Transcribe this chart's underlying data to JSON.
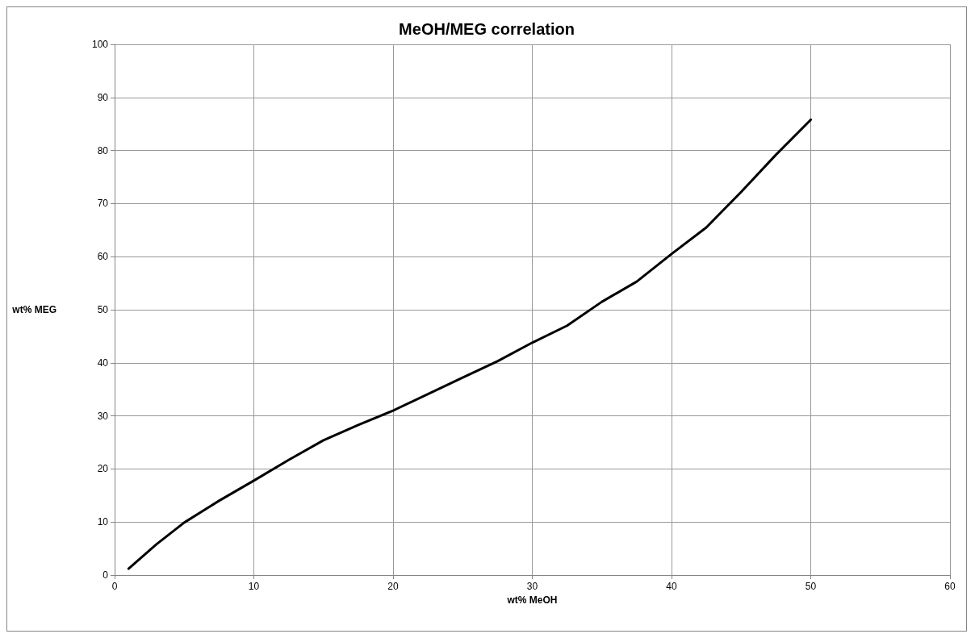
{
  "chart_data": {
    "type": "line",
    "title": "MeOH/MEG correlation",
    "xlabel": "wt% MeOH",
    "ylabel": "wt% MEG",
    "series": [
      {
        "color": "#000000",
        "x": [
          1,
          3,
          5,
          7.5,
          10,
          12.5,
          15,
          17.5,
          20,
          22.5,
          25,
          27.5,
          30,
          32.5,
          35,
          37.5,
          40,
          42.5,
          45,
          47.5,
          50
        ],
        "values": [
          1.2,
          5.8,
          9.9,
          14,
          17.8,
          21.7,
          25.4,
          28.3,
          31,
          34.1,
          37.2,
          40.3,
          43.8,
          47,
          51.5,
          55.3,
          60.5,
          65.5,
          72.2,
          79.2,
          85.8
        ]
      }
    ],
    "xlim": [
      0,
      60
    ],
    "xticks": [
      0,
      10,
      20,
      30,
      40,
      50,
      60
    ],
    "ylim": [
      0,
      100
    ],
    "yticks": [
      0,
      10,
      20,
      30,
      40,
      50,
      60,
      70,
      80,
      90,
      100
    ],
    "grid": true,
    "marker": "none",
    "line_style": "solid"
  }
}
